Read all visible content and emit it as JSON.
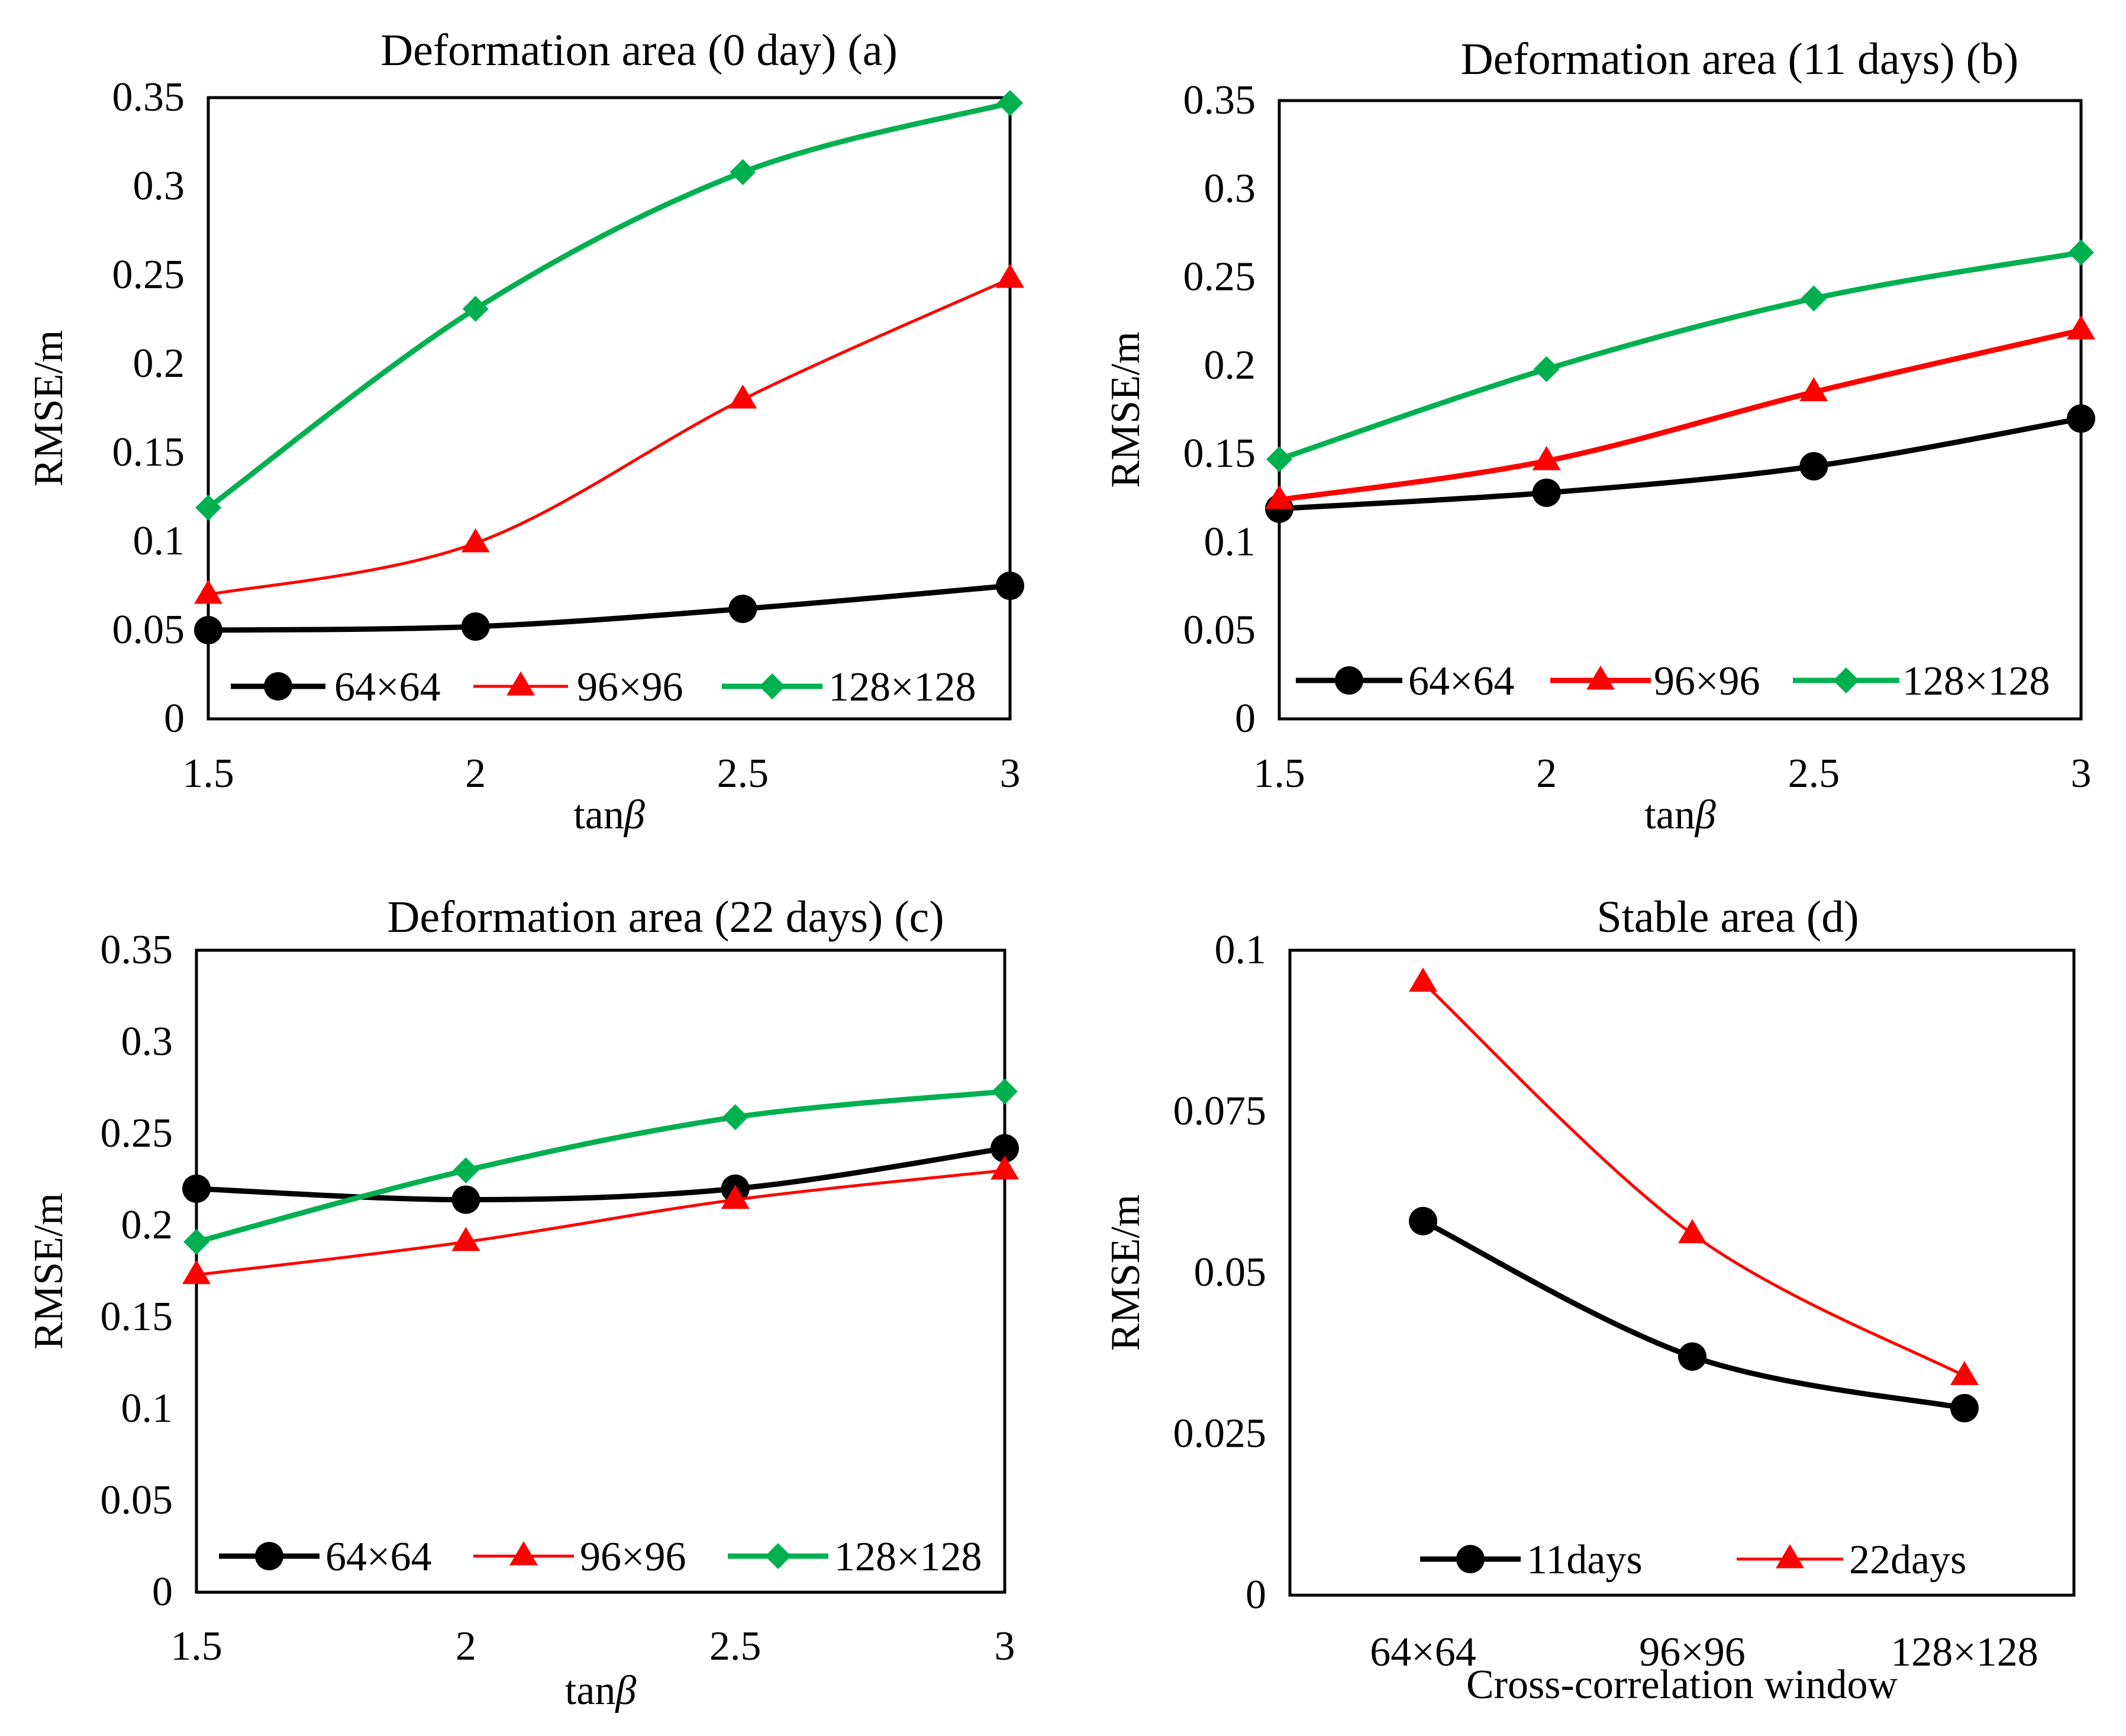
{
  "chart_data": [
    {
      "id": "a",
      "type": "line",
      "title": "Deformation area (0 day) (a)",
      "xlabel": "tanβ",
      "ylabel": "RMSE/m",
      "x": [
        1.5,
        2,
        2.5,
        3
      ],
      "xticks": [
        "1.5",
        "2",
        "2.5",
        "3"
      ],
      "xlim": [
        1.5,
        3
      ],
      "ylim": [
        0,
        0.35
      ],
      "yticks": [
        "0",
        "0.05",
        "0.1",
        "0.15",
        "0.2",
        "0.25",
        "0.3",
        "0.35"
      ],
      "ytick_values": [
        0,
        0.05,
        0.1,
        0.15,
        0.2,
        0.25,
        0.3,
        0.35
      ],
      "legend_position": "bottom",
      "series": [
        {
          "name": "64×64",
          "marker": "circle",
          "color": "#000000",
          "values": [
            0.05,
            0.052,
            0.062,
            0.075
          ]
        },
        {
          "name": "96×96",
          "marker": "triangle",
          "color": "#ff0000",
          "values": [
            0.07,
            0.099,
            0.18,
            0.248
          ]
        },
        {
          "name": "128×128",
          "marker": "diamond",
          "color": "#00b050",
          "values": [
            0.119,
            0.231,
            0.308,
            0.347
          ]
        }
      ]
    },
    {
      "id": "b",
      "type": "line",
      "title": "Deformation area (11 days) (b)",
      "xlabel": "tanβ",
      "ylabel": "RMSE/m",
      "x": [
        1.5,
        2,
        2.5,
        3
      ],
      "xticks": [
        "1.5",
        "2",
        "2.5",
        "3"
      ],
      "xlim": [
        1.5,
        3
      ],
      "ylim": [
        0,
        0.35
      ],
      "yticks": [
        "0",
        "0.05",
        "0.1",
        "0.15",
        "0.2",
        "0.25",
        "0.3",
        "0.35"
      ],
      "ytick_values": [
        0,
        0.05,
        0.1,
        0.15,
        0.2,
        0.25,
        0.3,
        0.35
      ],
      "legend_position": "bottom",
      "series": [
        {
          "name": "64×64",
          "marker": "circle",
          "color": "#000000",
          "values": [
            0.119,
            0.128,
            0.143,
            0.17
          ]
        },
        {
          "name": "96×96",
          "marker": "triangle",
          "color": "#ff0000",
          "values": [
            0.124,
            0.146,
            0.185,
            0.22
          ]
        },
        {
          "name": "128×128",
          "marker": "diamond",
          "color": "#00b050",
          "values": [
            0.147,
            0.198,
            0.238,
            0.264
          ]
        }
      ]
    },
    {
      "id": "c",
      "type": "line",
      "title": "Deformation area (22 days) (c)",
      "xlabel": "tanβ",
      "ylabel": "RMSE/m",
      "x": [
        1.5,
        2,
        2.5,
        3
      ],
      "xticks": [
        "1.5",
        "2",
        "2.5",
        "3"
      ],
      "xlim": [
        1.5,
        3
      ],
      "ylim": [
        0,
        0.35
      ],
      "yticks": [
        "0",
        "0.05",
        "0.1",
        "0.15",
        "0.2",
        "0.25",
        "0.3",
        "0.35"
      ],
      "ytick_values": [
        0,
        0.05,
        0.1,
        0.15,
        0.2,
        0.25,
        0.3,
        0.35
      ],
      "legend_position": "bottom",
      "series": [
        {
          "name": "64×64",
          "marker": "circle",
          "color": "#000000",
          "values": [
            0.22,
            0.214,
            0.22,
            0.242
          ]
        },
        {
          "name": "96×96",
          "marker": "triangle",
          "color": "#ff0000",
          "values": [
            0.173,
            0.191,
            0.214,
            0.23
          ]
        },
        {
          "name": "128×128",
          "marker": "diamond",
          "color": "#00b050",
          "values": [
            0.191,
            0.23,
            0.259,
            0.273
          ]
        }
      ]
    },
    {
      "id": "d",
      "type": "line",
      "title": "Stable area (d)",
      "xlabel": "Cross-correlation window",
      "ylabel": "RMSE/m",
      "categories": [
        "64×64",
        "96×96",
        "128×128"
      ],
      "xticks": [
        "64×64",
        "96×96",
        "128×128"
      ],
      "ylim": [
        0,
        0.1
      ],
      "yticks": [
        "0",
        "0.025",
        "0.05",
        "0.075",
        "0.1"
      ],
      "ytick_values": [
        0,
        0.025,
        0.05,
        0.075,
        0.1
      ],
      "legend_position": "bottom",
      "series": [
        {
          "name": "11days",
          "marker": "circle",
          "color": "#000000",
          "values": [
            0.058,
            0.037,
            0.029
          ]
        },
        {
          "name": "22days",
          "marker": "triangle",
          "color": "#ff0000",
          "values": [
            0.095,
            0.056,
            0.034
          ]
        }
      ]
    }
  ]
}
